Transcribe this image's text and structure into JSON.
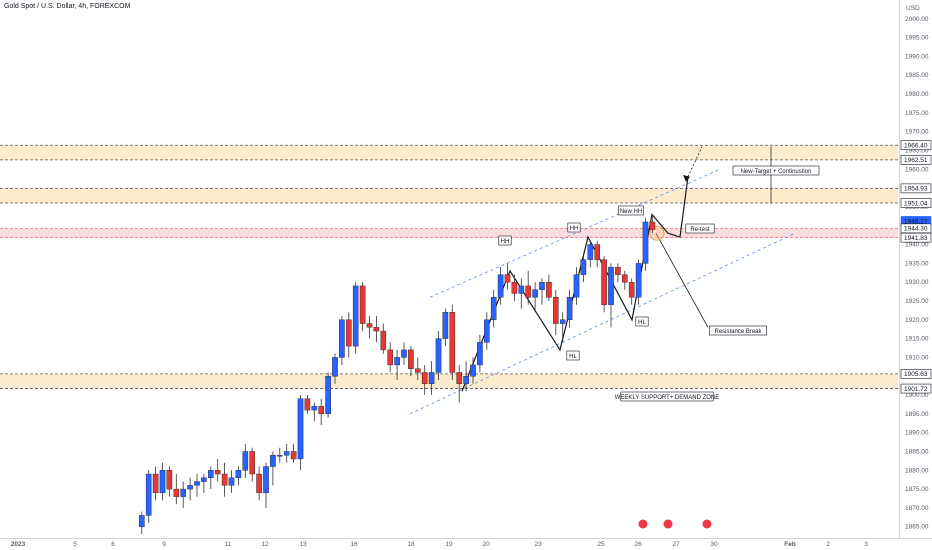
{
  "chart_data": {
    "type": "candlestick",
    "title": "Gold Spot / U.S. Dollar, 4h, FOREXCOM",
    "currency": "USD",
    "ylim": [
      1862,
      2005
    ],
    "y_ticks": [
      1865,
      1870,
      1875,
      1880,
      1885,
      1890,
      1895,
      1900,
      1905,
      1910,
      1915,
      1920,
      1925,
      1930,
      1935,
      1940,
      1945,
      1950,
      1955,
      1960,
      1965,
      1970,
      1975,
      1980,
      1985,
      1990,
      1995,
      2000
    ],
    "y_tick_labels": [
      "1865.00",
      "1870.00",
      "1875.00",
      "1880.00",
      "1885.00",
      "1890.00",
      "1895.00",
      "1900.00",
      "1905.00",
      "1910.00",
      "1915.00",
      "1920.00",
      "1925.00",
      "1930.00",
      "1935.00",
      "1940.00",
      "1945.00",
      "1950.00",
      "1955.00",
      "1960.00",
      "1965.00",
      "1970.00",
      "1975.00",
      "1980.00",
      "1985.00",
      "1990.00",
      "1995.00",
      "2000.00"
    ],
    "x_ticks": [
      {
        "label": "2023",
        "bar": -15
      },
      {
        "label": "5",
        "bar": -5
      },
      {
        "label": "6",
        "bar": 5
      },
      {
        "label": "9",
        "bar": 15
      },
      {
        "label": "11",
        "bar": 34
      },
      {
        "label": "12",
        "bar": 44
      },
      {
        "label": "13",
        "bar": 54
      },
      {
        "label": "16",
        "bar": 68
      },
      {
        "label": "18",
        "bar": 82
      },
      {
        "label": "19",
        "bar": 91
      },
      {
        "label": "20",
        "bar": 100
      },
      {
        "label": "23",
        "bar": 114
      },
      {
        "label": "25",
        "bar": 130
      },
      {
        "label": "26",
        "bar": 140
      },
      {
        "label": "27",
        "bar": 150
      },
      {
        "label": "30",
        "bar": 160
      },
      {
        "label": "Feb",
        "bar": 178
      },
      {
        "label": "2",
        "bar": 188
      },
      {
        "label": "3",
        "bar": 198
      }
    ],
    "candles": [
      [
        1865,
        1869,
        1863,
        1868
      ],
      [
        1868,
        1880,
        1866,
        1879
      ],
      [
        1879,
        1881,
        1872,
        1874
      ],
      [
        1874,
        1882,
        1872,
        1880
      ],
      [
        1880,
        1881,
        1873,
        1875
      ],
      [
        1875,
        1879,
        1871,
        1873
      ],
      [
        1873,
        1877,
        1870,
        1875
      ],
      [
        1875,
        1878,
        1872,
        1876
      ],
      [
        1876,
        1879,
        1873,
        1877
      ],
      [
        1877,
        1879,
        1874,
        1878
      ],
      [
        1878,
        1881,
        1875,
        1880
      ],
      [
        1880,
        1883,
        1877,
        1879
      ],
      [
        1879,
        1882,
        1873,
        1876
      ],
      [
        1876,
        1880,
        1874,
        1878
      ],
      [
        1878,
        1881,
        1876,
        1880
      ],
      [
        1880,
        1887,
        1878,
        1885
      ],
      [
        1885,
        1886,
        1877,
        1879
      ],
      [
        1879,
        1881,
        1872,
        1874
      ],
      [
        1874,
        1882,
        1870,
        1881
      ],
      [
        1881,
        1885,
        1876,
        1884
      ],
      [
        1884,
        1886,
        1882,
        1884
      ],
      [
        1884,
        1887,
        1882,
        1885
      ],
      [
        1885,
        1887,
        1882,
        1883
      ],
      [
        1883,
        1900,
        1880,
        1899
      ],
      [
        1899,
        1900,
        1895,
        1896
      ],
      [
        1896,
        1898,
        1893,
        1897
      ],
      [
        1897,
        1899,
        1892,
        1895
      ],
      [
        1895,
        1906,
        1894,
        1905
      ],
      [
        1905,
        1911,
        1903,
        1910
      ],
      [
        1910,
        1921,
        1908,
        1920
      ],
      [
        1920,
        1922,
        1910,
        1913
      ],
      [
        1913,
        1930,
        1911,
        1929
      ],
      [
        1929,
        1930,
        1917,
        1919
      ],
      [
        1919,
        1921,
        1915,
        1918
      ],
      [
        1918,
        1921,
        1914,
        1917
      ],
      [
        1917,
        1919,
        1911,
        1912
      ],
      [
        1912,
        1914,
        1906,
        1908
      ],
      [
        1908,
        1912,
        1904,
        1910
      ],
      [
        1910,
        1914,
        1908,
        1912
      ],
      [
        1912,
        1913,
        1905,
        1907
      ],
      [
        1907,
        1910,
        1904,
        1906
      ],
      [
        1906,
        1908,
        1900,
        1903
      ],
      [
        1903,
        1909,
        1900,
        1906
      ],
      [
        1906,
        1917,
        1904,
        1915
      ],
      [
        1915,
        1923,
        1913,
        1922
      ],
      [
        1922,
        1924,
        1904,
        1906
      ],
      [
        1906,
        1908,
        1898,
        1903
      ],
      [
        1903,
        1909,
        1901,
        1905
      ],
      [
        1905,
        1910,
        1903,
        1908
      ],
      [
        1908,
        1916,
        1906,
        1914
      ],
      [
        1914,
        1922,
        1912,
        1920
      ],
      [
        1920,
        1928,
        1918,
        1926
      ],
      [
        1926,
        1934,
        1924,
        1932
      ],
      [
        1932,
        1935,
        1928,
        1930
      ],
      [
        1930,
        1932,
        1925,
        1927
      ],
      [
        1927,
        1931,
        1923,
        1929
      ],
      [
        1929,
        1933,
        1924,
        1926
      ],
      [
        1926,
        1930,
        1922,
        1928
      ],
      [
        1928,
        1931,
        1924,
        1930
      ],
      [
        1930,
        1932,
        1925,
        1926
      ],
      [
        1926,
        1928,
        1916,
        1919
      ],
      [
        1919,
        1922,
        1914,
        1920
      ],
      [
        1920,
        1928,
        1918,
        1926
      ],
      [
        1926,
        1934,
        1924,
        1932
      ],
      [
        1932,
        1937,
        1930,
        1936
      ],
      [
        1936,
        1941,
        1934,
        1940
      ],
      [
        1940,
        1941,
        1934,
        1936
      ],
      [
        1936,
        1937,
        1922,
        1924
      ],
      [
        1924,
        1935,
        1918,
        1934
      ],
      [
        1934,
        1935,
        1930,
        1932
      ],
      [
        1932,
        1933,
        1928,
        1930
      ],
      [
        1930,
        1931,
        1924,
        1926
      ],
      [
        1926,
        1936,
        1924,
        1935
      ],
      [
        1935,
        1947,
        1933,
        1946
      ],
      [
        1946,
        1948,
        1943,
        1944
      ]
    ],
    "start_bar": 12,
    "zones": [
      {
        "top": 1966.4,
        "bottom": 1962.51,
        "kind": "supply"
      },
      {
        "top": 1954.93,
        "bottom": 1951.04,
        "kind": "supply"
      },
      {
        "top": 1944.3,
        "bottom": 1941.83,
        "kind": "resistance"
      },
      {
        "top": 1905.63,
        "bottom": 1901.72,
        "kind": "demand"
      }
    ],
    "price_tags": [
      {
        "label": "1966.40",
        "value": 1966.4,
        "style": "line"
      },
      {
        "label": "1962.51",
        "value": 1962.51,
        "style": "line"
      },
      {
        "label": "1954.93",
        "value": 1954.93,
        "style": "line"
      },
      {
        "label": "1951.04",
        "value": 1951.04,
        "style": "line"
      },
      {
        "label": "1946.27",
        "value": 1946.27,
        "style": "current"
      },
      {
        "label": "1944.30",
        "value": 1944.3,
        "style": "line"
      },
      {
        "label": "1941.83",
        "value": 1941.83,
        "style": "line"
      },
      {
        "label": "1905.63",
        "value": 1905.63,
        "style": "line"
      },
      {
        "label": "1901.72",
        "value": 1901.72,
        "style": "line"
      }
    ],
    "annotations": [
      {
        "text": "HH",
        "bar": 101,
        "price": 1940
      },
      {
        "text": "HH",
        "bar": 118,
        "price": 1943
      },
      {
        "text": "New HH",
        "bar": 124,
        "price": 1948
      },
      {
        "text": "HL",
        "bar": 114,
        "price": 1910
      },
      {
        "text": "HL",
        "bar": 128,
        "price": 1919
      },
      {
        "text": "Re-test",
        "bar": 138,
        "price": 1943
      },
      {
        "text": "New-Target + Continustion",
        "bar": 148,
        "price": 1959.5
      },
      {
        "text": "Resistance Break",
        "bar": 146,
        "price": 1918
      },
      {
        "text": "WEEKLY SUPPORT+ DEMAND ZONE",
        "bar": 124,
        "price": 1898
      }
    ]
  }
}
